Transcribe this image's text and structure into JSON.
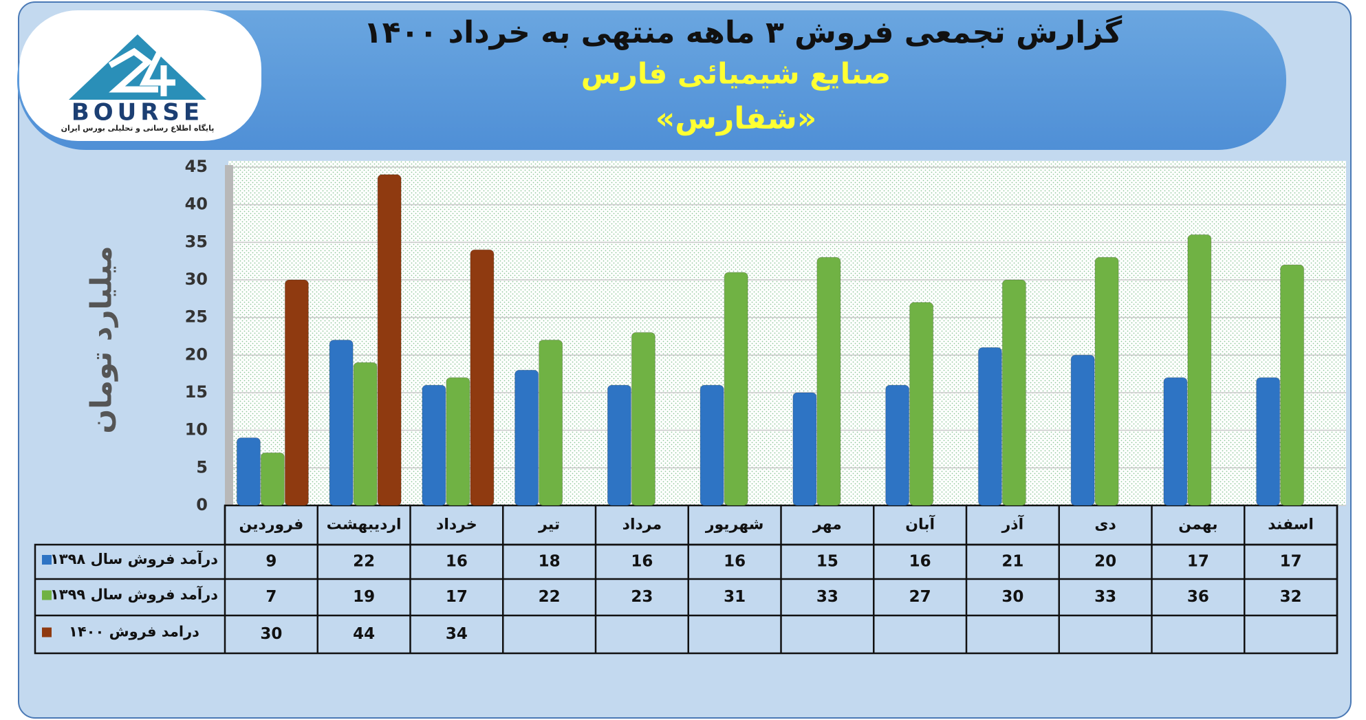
{
  "chart_data": {
    "type": "bar",
    "title": "گزارش تجمعی فروش ۳ ماهه منتهی به خرداد ۱۴۰۰",
    "subtitle": "صنایع شیمیائی فارس",
    "symbol": "«شفارس»",
    "y_label": "میلیارد تومان",
    "logo_text": "BOURSE",
    "logo_caption": "پایگاه اطلاع رسانی و تحلیلی بورس ایران",
    "categories": [
      "فروردین",
      "اردیبهشت",
      "خرداد",
      "تیر",
      "مرداد",
      "شهریور",
      "مهر",
      "آبان",
      "آذر",
      "دی",
      "بهمن",
      "اسفند"
    ],
    "series": [
      {
        "name": "درآمد فروش سال ۱۳۹۸",
        "color": "#2e74c4",
        "values": [
          9,
          22,
          16,
          18,
          16,
          16,
          15,
          16,
          21,
          20,
          17,
          17
        ]
      },
      {
        "name": "درآمد فروش سال ۱۳۹۹",
        "color": "#70b244",
        "values": [
          7,
          19,
          17,
          22,
          23,
          31,
          33,
          27,
          30,
          33,
          36,
          32
        ]
      },
      {
        "name": "درامد فروش ۱۴۰۰",
        "color": "#8f3a10",
        "values": [
          30,
          44,
          34,
          null,
          null,
          null,
          null,
          null,
          null,
          null,
          null,
          null
        ]
      }
    ],
    "ylim": [
      0,
      45
    ],
    "yticks": [
      0,
      5,
      10,
      15,
      20,
      25,
      30,
      35,
      40,
      45
    ],
    "grid": true
  }
}
